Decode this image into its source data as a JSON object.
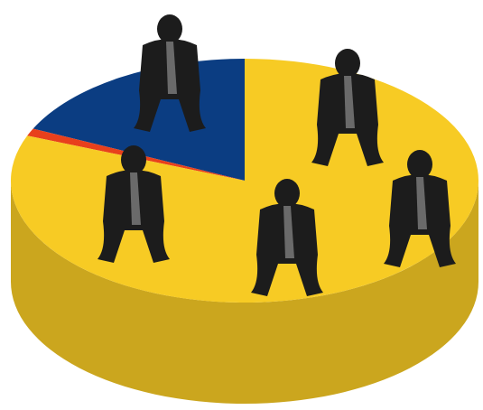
{
  "chart_data": {
    "type": "pie",
    "values": [
      18,
      1,
      81
    ],
    "colors": [
      "#0b3d82",
      "#e8401c",
      "#f7cb24"
    ],
    "start_angle": 90
  }
}
